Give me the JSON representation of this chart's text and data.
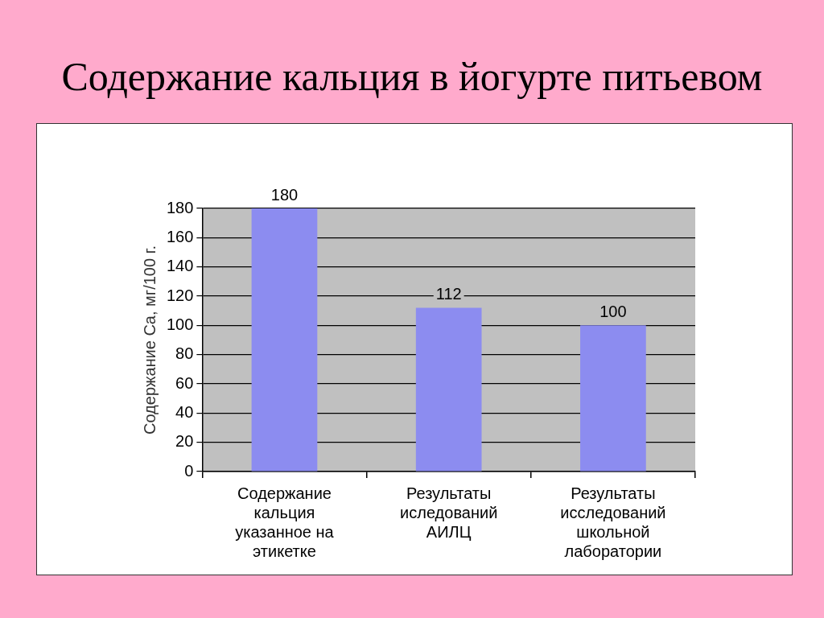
{
  "chart_data": {
    "type": "bar",
    "title": "Содержание кальция в йогурте питьевом",
    "ylabel": "Содержание Ca, мг/100 г.",
    "categories": [
      "Содержание кальция указанное на этикетке",
      "Результаты иследований АИЛЦ",
      "Результаты исследований школьной лаборатории"
    ],
    "values": [
      180,
      112,
      100
    ],
    "color": "#8c8cf0",
    "ylim": [
      0,
      180
    ],
    "yticks": [
      0,
      20,
      40,
      60,
      80,
      100,
      120,
      140,
      160,
      180
    ],
    "grid": "y",
    "data_labels": true
  }
}
